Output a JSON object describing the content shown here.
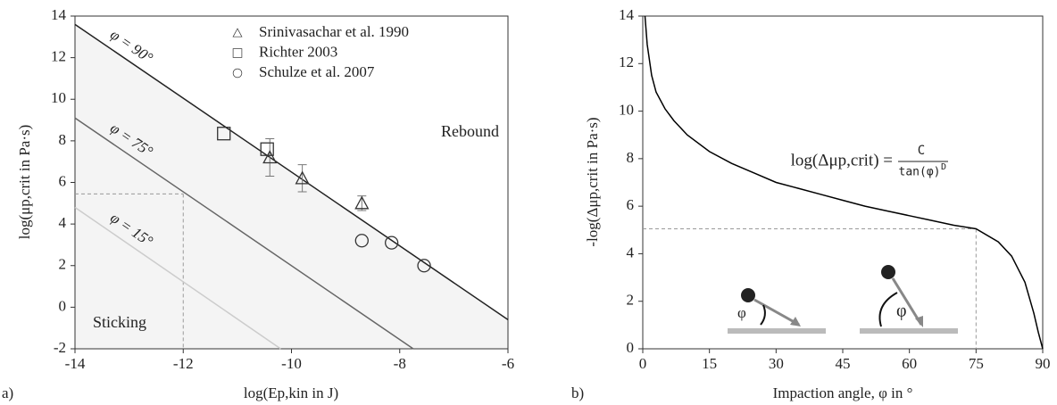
{
  "chart_data": [
    {
      "type": "scatter",
      "panel_label": "a)",
      "x_label": "log(Ep,kin in J)",
      "y_label": "log(μp,crit in Pa·s)",
      "xlim": [
        -14,
        -6
      ],
      "xticks": [
        -14,
        -12,
        -10,
        -8,
        -6
      ],
      "ylim": [
        -2,
        14
      ],
      "yticks": [
        -2,
        0,
        2,
        4,
        6,
        8,
        10,
        12,
        14
      ],
      "shaded": true,
      "legend": "top",
      "annotations": [
        "Rebound",
        "Sticking"
      ],
      "reference": {
        "x": -12,
        "y": 5.45
      },
      "series": [
        {
          "type": "line",
          "name": "φ = 90°",
          "color": "#222222",
          "x": [
            -14,
            -6
          ],
          "values": [
            13.6,
            -0.6
          ]
        },
        {
          "type": "line",
          "name": "φ = 75°",
          "color": "#666666",
          "x": [
            -14,
            -7.75
          ],
          "values": [
            9.1,
            -2
          ]
        },
        {
          "type": "line",
          "name": "φ = 15°",
          "color": "#cccccc",
          "x": [
            -14,
            -10.2
          ],
          "values": [
            4.8,
            -2
          ]
        },
        {
          "type": "scatter",
          "name": "Srinivasachar et al. 1990",
          "marker": "triangle",
          "color": "#333333",
          "x": [
            -10.4,
            -9.8,
            -8.7
          ],
          "values": [
            7.2,
            6.2,
            5.0
          ],
          "errors": [
            0.9,
            0.65,
            0.35
          ]
        },
        {
          "type": "scatter",
          "name": "Richter 2003",
          "marker": "square",
          "color": "#333333",
          "x": [
            -11.25,
            -10.45
          ],
          "values": [
            8.35,
            7.6
          ]
        },
        {
          "type": "scatter",
          "name": "Schulze et al. 2007",
          "marker": "circle",
          "color": "#333333",
          "x": [
            -8.7,
            -8.15,
            -7.55
          ],
          "values": [
            3.2,
            3.1,
            2.0
          ]
        }
      ]
    },
    {
      "type": "line",
      "panel_label": "b)",
      "x_label": "Impaction angle, φ in °",
      "y_label": "-log(Δμp,crit in Pa·s)",
      "xlim": [
        0,
        90
      ],
      "xticks": [
        0,
        15,
        30,
        45,
        60,
        75,
        90
      ],
      "ylim": [
        0,
        14
      ],
      "yticks": [
        0,
        2,
        4,
        6,
        8,
        10,
        12,
        14
      ],
      "formula": {
        "lhs": "log(Δμp,crit) =",
        "numerator": "C",
        "denominator": "tan(φ)",
        "exponent": "D"
      },
      "illustrations": [
        "φ",
        "φ"
      ],
      "reference": {
        "x": 75,
        "y": 5.05
      },
      "x": [
        0.5,
        1,
        2,
        3,
        5,
        7,
        10,
        15,
        20,
        25,
        30,
        35,
        40,
        45,
        50,
        55,
        60,
        65,
        70,
        75,
        80,
        83,
        86,
        88,
        89,
        90
      ],
      "series": [
        {
          "color": "#000000",
          "values": [
            14,
            12.8,
            11.5,
            10.8,
            10.1,
            9.6,
            9.0,
            8.3,
            7.8,
            7.4,
            7.0,
            6.75,
            6.5,
            6.25,
            6.0,
            5.8,
            5.6,
            5.4,
            5.2,
            5.05,
            4.5,
            3.9,
            2.8,
            1.5,
            0.7,
            0
          ]
        }
      ]
    }
  ]
}
